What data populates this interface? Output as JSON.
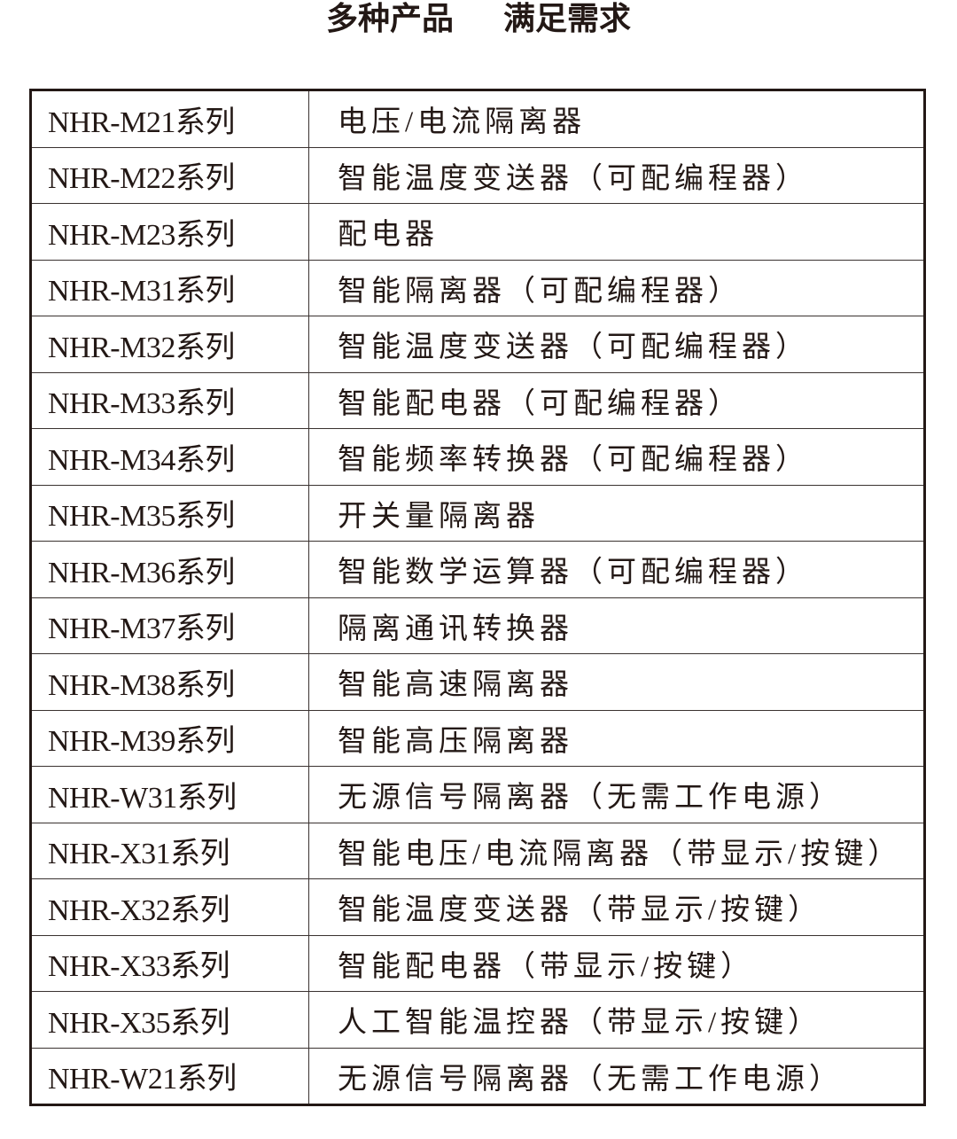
{
  "title": {
    "left": "多种产品",
    "right": "满足需求"
  },
  "rows": [
    {
      "model": "NHR-M21系列",
      "desc": "电压/电流隔离器"
    },
    {
      "model": "NHR-M22系列",
      "desc": "智能温度变送器（可配编程器）"
    },
    {
      "model": "NHR-M23系列",
      "desc": "配电器"
    },
    {
      "model": "NHR-M31系列",
      "desc": "智能隔离器（可配编程器）"
    },
    {
      "model": "NHR-M32系列",
      "desc": "智能温度变送器（可配编程器）"
    },
    {
      "model": "NHR-M33系列",
      "desc": "智能配电器（可配编程器）"
    },
    {
      "model": "NHR-M34系列",
      "desc": "智能频率转换器（可配编程器）"
    },
    {
      "model": "NHR-M35系列",
      "desc": "开关量隔离器"
    },
    {
      "model": "NHR-M36系列",
      "desc": "智能数学运算器（可配编程器）"
    },
    {
      "model": "NHR-M37系列",
      "desc": "隔离通讯转换器"
    },
    {
      "model": "NHR-M38系列",
      "desc": "智能高速隔离器"
    },
    {
      "model": "NHR-M39系列",
      "desc": "智能高压隔离器"
    },
    {
      "model": "NHR-W31系列",
      "desc": "无源信号隔离器（无需工作电源）"
    },
    {
      "model": "NHR-X31系列",
      "desc": "智能电压/电流隔离器（带显示/按键）"
    },
    {
      "model": "NHR-X32系列",
      "desc": "智能温度变送器（带显示/按键）"
    },
    {
      "model": "NHR-X33系列",
      "desc": "智能配电器（带显示/按键）"
    },
    {
      "model": "NHR-X35系列",
      "desc": "人工智能温控器（带显示/按键）"
    },
    {
      "model": "NHR-W21系列",
      "desc": "无源信号隔离器（无需工作电源）"
    }
  ]
}
